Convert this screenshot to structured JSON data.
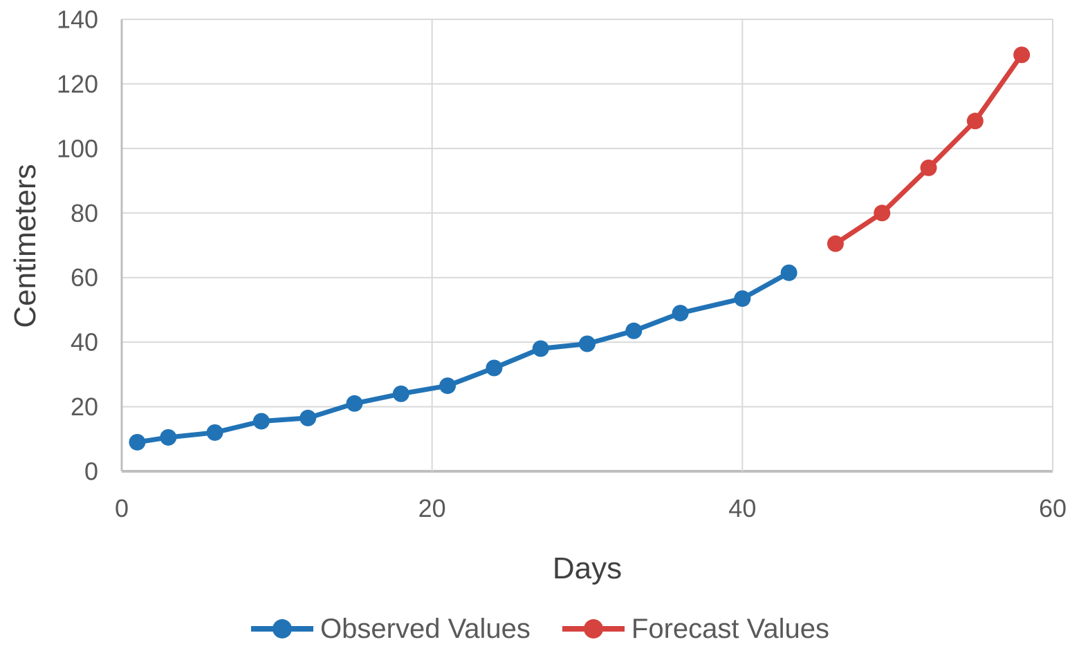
{
  "chart_data": {
    "type": "line",
    "xlabel": "Days",
    "ylabel": "Centimeters",
    "xlim": [
      0,
      60
    ],
    "ylim": [
      0,
      140
    ],
    "x_ticks": [
      0,
      20,
      40,
      60
    ],
    "y_ticks": [
      0,
      20,
      40,
      60,
      80,
      100,
      120,
      140
    ],
    "grid": true,
    "legend_position": "bottom-center",
    "series": [
      {
        "name": "Observed Values",
        "color": "#2173B6",
        "x": [
          1,
          3,
          6,
          9,
          12,
          15,
          18,
          21,
          24,
          27,
          30,
          33,
          36,
          40,
          43
        ],
        "values": [
          9,
          10.5,
          12,
          15.5,
          16.5,
          21,
          24,
          26.5,
          32,
          38,
          39.5,
          43.5,
          49,
          53.5,
          61.5
        ]
      },
      {
        "name": "Forecast Values",
        "color": "#D6423E",
        "x": [
          46,
          49,
          52,
          55,
          58
        ],
        "values": [
          70.5,
          80,
          94,
          108.5,
          129
        ]
      }
    ]
  },
  "colors": {
    "gridline": "#D9D9D9",
    "axis_line": "#BFBFBF",
    "tick_text": "#595959",
    "axis_title_text": "#404040"
  }
}
